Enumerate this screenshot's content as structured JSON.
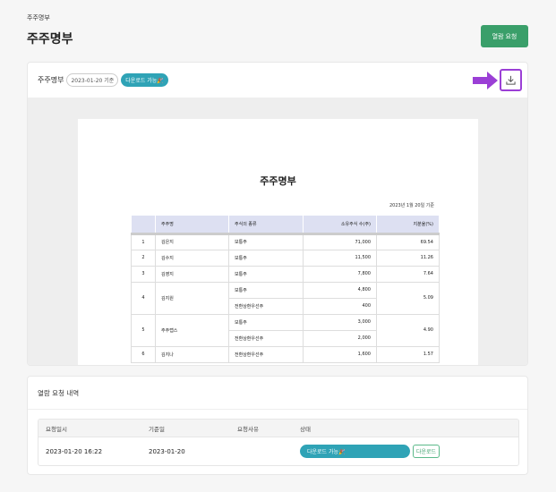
{
  "breadcrumb": "주주명부",
  "title": "주주명부",
  "request_button": "열람 요청",
  "viewer": {
    "label": "주주명부",
    "date_badge": "2023-01-20 기준",
    "status_badge": "다운로드 가능🎉",
    "download_icon": "download-icon",
    "accent": "#9b3fd6",
    "document": {
      "title": "주주명부",
      "as_of": "2023년 1월 20일 기준",
      "headers": [
        "",
        "주주명",
        "주식의 종류",
        "소유주식 수(주)",
        "지분율(%)"
      ],
      "rows": [
        {
          "no": "1",
          "name": "김은지",
          "shares": [
            {
              "type": "보통주",
              "count": "71,000"
            }
          ],
          "ratio": "69.54"
        },
        {
          "no": "2",
          "name": "김수지",
          "shares": [
            {
              "type": "보통주",
              "count": "11,500"
            }
          ],
          "ratio": "11.26"
        },
        {
          "no": "3",
          "name": "김영지",
          "shares": [
            {
              "type": "보통주",
              "count": "7,800"
            }
          ],
          "ratio": "7.64"
        },
        {
          "no": "4",
          "name": "김지원",
          "shares": [
            {
              "type": "보통주",
              "count": "4,800"
            },
            {
              "type": "전환상환우선주",
              "count": "400"
            }
          ],
          "ratio": "5.09"
        },
        {
          "no": "5",
          "name": "주주랩스",
          "shares": [
            {
              "type": "보통주",
              "count": "3,000"
            },
            {
              "type": "전환상환우선주",
              "count": "2,000"
            }
          ],
          "ratio": "4.90"
        },
        {
          "no": "6",
          "name": "김지나",
          "shares": [
            {
              "type": "전환상환우선주",
              "count": "1,600"
            }
          ],
          "ratio": "1.57"
        }
      ]
    }
  },
  "history": {
    "title": "열람 요청 내역",
    "headers": [
      "요청일시",
      "기준일",
      "요청사유",
      "상태"
    ],
    "rows": [
      {
        "requested_at": "2023-01-20 16:22",
        "base_date": "2023-01-20",
        "reason": "",
        "status": "다운로드 가능🎉",
        "action": "다운로드"
      }
    ]
  }
}
